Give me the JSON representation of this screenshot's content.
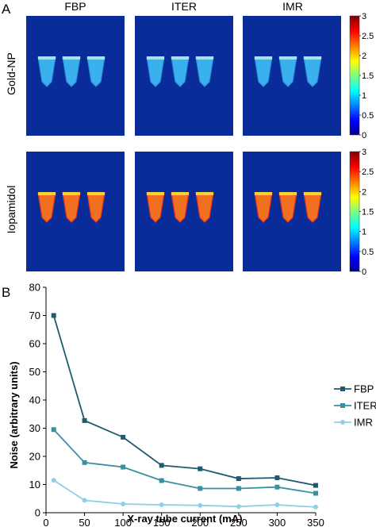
{
  "panel_a": {
    "letter": "A",
    "columns": [
      "FBP",
      "ITER",
      "IMR"
    ],
    "rows": [
      "Gold-NP",
      "Iopamidol"
    ],
    "colorbar_ticks": [
      "3",
      "2.5",
      "2",
      "1.5",
      "1",
      "0.5",
      "0"
    ],
    "colors": {
      "background": "#0a2c9a",
      "gold_np_fill": "#3ab0ee",
      "iopamidol_fill": "#f07020"
    }
  },
  "panel_b": {
    "letter": "B"
  },
  "chart_data": {
    "type": "line",
    "xlabel": "X-ray tube current (mA)",
    "ylabel": "Noise (arbitrary units)",
    "x": [
      10,
      50,
      100,
      150,
      200,
      250,
      300,
      350
    ],
    "xticks": [
      0,
      50,
      100,
      150,
      200,
      250,
      300,
      350
    ],
    "yticks": [
      0,
      10,
      20,
      30,
      40,
      50,
      60,
      70,
      80
    ],
    "xlim": [
      0,
      350
    ],
    "ylim": [
      0,
      80
    ],
    "grid": false,
    "legend_position": "right",
    "series": [
      {
        "name": "FBP",
        "marker": "square",
        "color": "#1f5a6e",
        "values": [
          70,
          32.7,
          26.8,
          16.8,
          15.6,
          12.1,
          12.4,
          9.7
        ]
      },
      {
        "name": "ITER",
        "marker": "square",
        "color": "#3890a0",
        "values": [
          29.5,
          17.8,
          16.2,
          11.4,
          8.6,
          8.6,
          9.1,
          6.9
        ]
      },
      {
        "name": "IMR",
        "marker": "circle",
        "color": "#8ecfe3",
        "values": [
          11.5,
          4.4,
          3.1,
          2.8,
          2.6,
          2.2,
          2.8,
          2
        ]
      }
    ]
  }
}
